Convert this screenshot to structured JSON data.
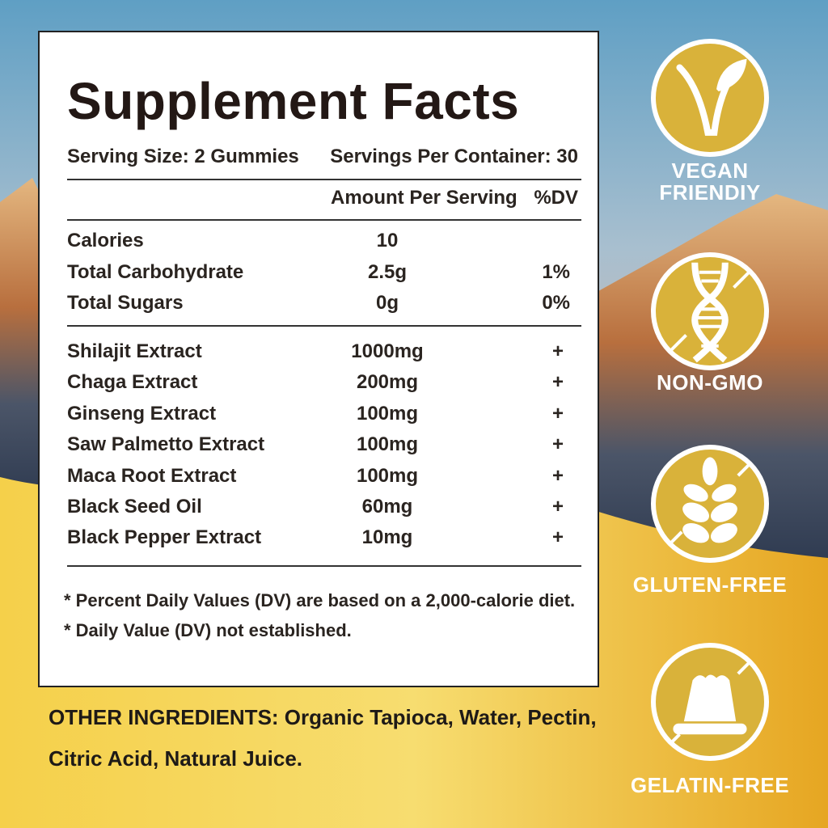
{
  "title": "Supplement Facts",
  "serving_size": "Serving Size: 2 Gummies",
  "servings_per_container": "Servings Per Container: 30",
  "amount_header": "Amount Per Serving",
  "dv_header": "%DV",
  "nutrients": [
    {
      "name": "Calories",
      "amount": "10",
      "dv": ""
    },
    {
      "name": "Total Carbohydrate",
      "amount": "2.5g",
      "dv": "1%"
    },
    {
      "name": "Total Sugars",
      "amount": "0g",
      "dv": "0%"
    }
  ],
  "ingredients": [
    {
      "name": "Shilajit Extract",
      "amount": "1000mg",
      "dv": "+"
    },
    {
      "name": "Chaga Extract",
      "amount": "200mg",
      "dv": "+"
    },
    {
      "name": "Ginseng Extract",
      "amount": "100mg",
      "dv": "+"
    },
    {
      "name": "Saw Palmetto Extract",
      "amount": "100mg",
      "dv": "+"
    },
    {
      "name": "Maca Root Extract",
      "amount": "100mg",
      "dv": "+"
    },
    {
      "name": "Black Seed Oil",
      "amount": "60mg",
      "dv": "+"
    },
    {
      "name": "Black Pepper Extract",
      "amount": "10mg",
      "dv": "+"
    }
  ],
  "footnotes": [
    "* Percent Daily Values (DV) are based on a 2,000-calorie diet.",
    "* Daily Value (DV) not established."
  ],
  "other_ingredients": {
    "line1": "OTHER INGREDIENTS: Organic Tapioca, Water, Pectin,",
    "line2": "Citric Acid, Natural Juice."
  },
  "badges": [
    {
      "icon": "vegan-leaf-icon",
      "label1": "VEGAN",
      "label2": "FRIENDIY"
    },
    {
      "icon": "dna-crossed-icon",
      "label1": "NON-GMO"
    },
    {
      "icon": "wheat-crossed-icon",
      "label1": "GLUTEN-FREE"
    },
    {
      "icon": "gelatin-crossed-icon",
      "label1": "GELATIN-FREE"
    }
  ],
  "colors": {
    "badge": "#d9b23a",
    "accent_yellow": "#f0c233",
    "text": "#231815"
  }
}
